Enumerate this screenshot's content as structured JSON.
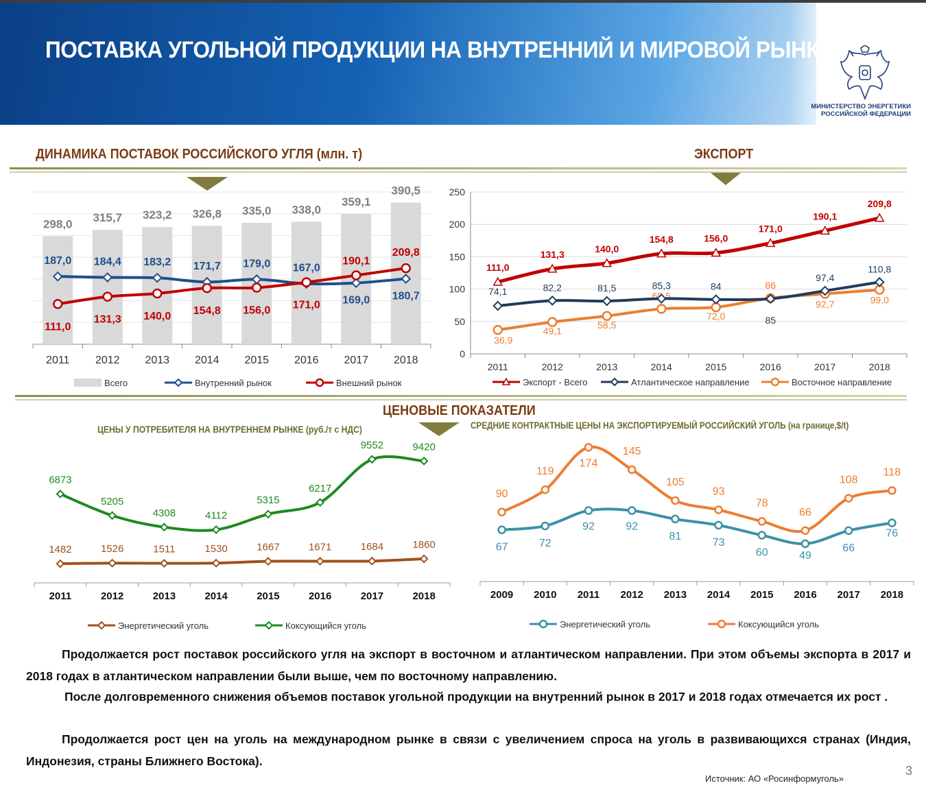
{
  "page": {
    "title": "ПОСТАВКА УГОЛЬНОЙ ПРОДУКЦИИ НА ВНУТРЕННИЙ И МИРОВОЙ РЫНКИ",
    "ministry_line1": "МИНИСТЕРСТВО ЭНЕРГЕТИКИ",
    "ministry_line2": "РОССИЙСКОЙ ФЕДЕРАЦИИ",
    "section1_title": "ДИНАМИКА ПОСТАВОК  РОССИЙСКОГО УГЛЯ (млн. т)",
    "section2_title": "ЭКСПОРТ",
    "section3_title": "ЦЕНОВЫЕ ПОКАЗАТЕЛИ",
    "paragraphs": [
      "Продолжается рост поставок российского угля на экспорт в восточном и атлантическом направлении. При этом объемы экспорта в 2017 и 2018 годах в атлантическом направлении были  выше,  чем по восточному направлению.",
      "После долговременного снижения объемов поставок угольной продукции на внутренний рынок в 2017 и 2018 годах отмечается их рост .",
      "Продолжается рост цен на уголь на международном рынке в связи с увеличением спроса на уголь в развивающихся странах (Индия, Индонезия, страны Ближнего Востока)."
    ],
    "source": "Источник: АО «Росинформуголь»",
    "page_number": "3",
    "colors": {
      "header_blue": "#0b3f86",
      "section_brown": "#7a3c12",
      "olive": "#7f7c3e"
    }
  },
  "chart_data": [
    {
      "id": "supply",
      "type": "bar",
      "categories": [
        "2011",
        "2012",
        "2013",
        "2014",
        "2015",
        "2016",
        "2017",
        "2018"
      ],
      "series": [
        {
          "name": "Всего",
          "type": "bar",
          "color": "#d9d9d9",
          "label_color": "#7f7f7f",
          "values": [
            298.0,
            315.7,
            323.2,
            326.8,
            335.0,
            338.0,
            359.1,
            390.5
          ],
          "labels": [
            "298,0",
            "315,7",
            "323,2",
            "326,8",
            "335,0",
            "338,0",
            "359,1",
            "390,5"
          ]
        },
        {
          "name": "Внутренний рынок",
          "type": "line",
          "color": "#1f4e8c",
          "marker": "diamond",
          "values": [
            187.0,
            184.4,
            183.2,
            171.7,
            179.0,
            167.0,
            169.0,
            180.7
          ],
          "labels": [
            "187,0",
            "184,4",
            "183,2",
            "171,7",
            "179,0",
            "167,0",
            "169,0",
            "180,7"
          ]
        },
        {
          "name": "Внешний рынок",
          "type": "line",
          "color": "#c00000",
          "marker": "circle",
          "values": [
            111.0,
            131.3,
            140.0,
            154.8,
            156.0,
            171.0,
            190.1,
            209.8
          ],
          "labels": [
            "111,0",
            "131,3",
            "140,0",
            "154,8",
            "156,0",
            "171,0",
            "190,1",
            "209,8"
          ]
        }
      ],
      "ylim": [
        0,
        420
      ],
      "grid": true,
      "legend_position": "bottom"
    },
    {
      "id": "export",
      "type": "line",
      "categories": [
        "2011",
        "2012",
        "2013",
        "2014",
        "2015",
        "2016",
        "2017",
        "2018"
      ],
      "series": [
        {
          "name": "Экспорт - Всего",
          "color": "#c00000",
          "marker": "triangle",
          "values": [
            111.0,
            131.3,
            140.0,
            154.8,
            156.0,
            171.0,
            190.1,
            209.8
          ],
          "labels": [
            "111,0",
            "131,3",
            "140,0",
            "154,8",
            "156,0",
            "171,0",
            "190,1",
            "209,8"
          ]
        },
        {
          "name": "Атлантическое направление",
          "color": "#1f3b5c",
          "marker": "diamond",
          "values": [
            74.1,
            82.2,
            81.5,
            85.3,
            84,
            85,
            97.4,
            110.8
          ],
          "labels": [
            "74,1",
            "82,2",
            "81,5",
            "85,3",
            "84",
            "85",
            "97,4",
            "110,8"
          ]
        },
        {
          "name": "Восточное направление",
          "color": "#ed7d31",
          "marker": "circle",
          "values": [
            36.9,
            49.1,
            58.5,
            69.5,
            72.0,
            86,
            92.7,
            99.0
          ],
          "labels": [
            "36,9",
            "49,1",
            "58,5",
            "69,5",
            "72,0",
            "86",
            "92,7",
            "99,0"
          ]
        }
      ],
      "ylim": [
        0,
        250
      ],
      "yticks": [
        "0",
        "50",
        "100",
        "150",
        "200",
        "250"
      ],
      "grid": true,
      "legend_position": "bottom"
    },
    {
      "id": "domestic_prices",
      "type": "line",
      "title": "ЦЕНЫ У ПОТРЕБИТЕЛЯ НА ВНУТРЕННЕМ РЫНКЕ (руб./т с НДС)",
      "categories": [
        "2011",
        "2012",
        "2013",
        "2014",
        "2015",
        "2016",
        "2017",
        "2018"
      ],
      "series": [
        {
          "name": "Энергетический уголь",
          "color": "#a0501c",
          "marker": "diamond",
          "values": [
            1482,
            1526,
            1511,
            1530,
            1667,
            1671,
            1684,
            1860
          ]
        },
        {
          "name": "Коксующийся уголь",
          "color": "#1e8a1e",
          "marker": "diamond",
          "values": [
            6873,
            5205,
            4308,
            4112,
            5315,
            6217,
            9552,
            9420
          ]
        }
      ],
      "ylim": [
        0,
        10500
      ],
      "grid": false,
      "legend_position": "bottom"
    },
    {
      "id": "export_prices",
      "type": "line",
      "title": "СРЕДНИЕ КОНТРАКТНЫЕ ЦЕНЫ НА ЭКСПОРТИРУЕМЫЙ РОССИЙСКИЙ УГОЛЬ (на границе,$/t)",
      "categories": [
        "2009",
        "2010",
        "2011",
        "2012",
        "2013",
        "2014",
        "2015",
        "2016",
        "2017",
        "2018"
      ],
      "series": [
        {
          "name": "Энергетический уголь",
          "color": "#3a91a8",
          "marker": "circle",
          "values": [
            67,
            72,
            92,
            92,
            81,
            73,
            60,
            49,
            66,
            76
          ]
        },
        {
          "name": "Коксующийся уголь",
          "color": "#ed7d31",
          "marker": "circle",
          "values": [
            90,
            119,
            174,
            145,
            105,
            93,
            78,
            66,
            108,
            118
          ]
        }
      ],
      "ylim": [
        0,
        185
      ],
      "grid": false,
      "legend_position": "bottom"
    }
  ]
}
